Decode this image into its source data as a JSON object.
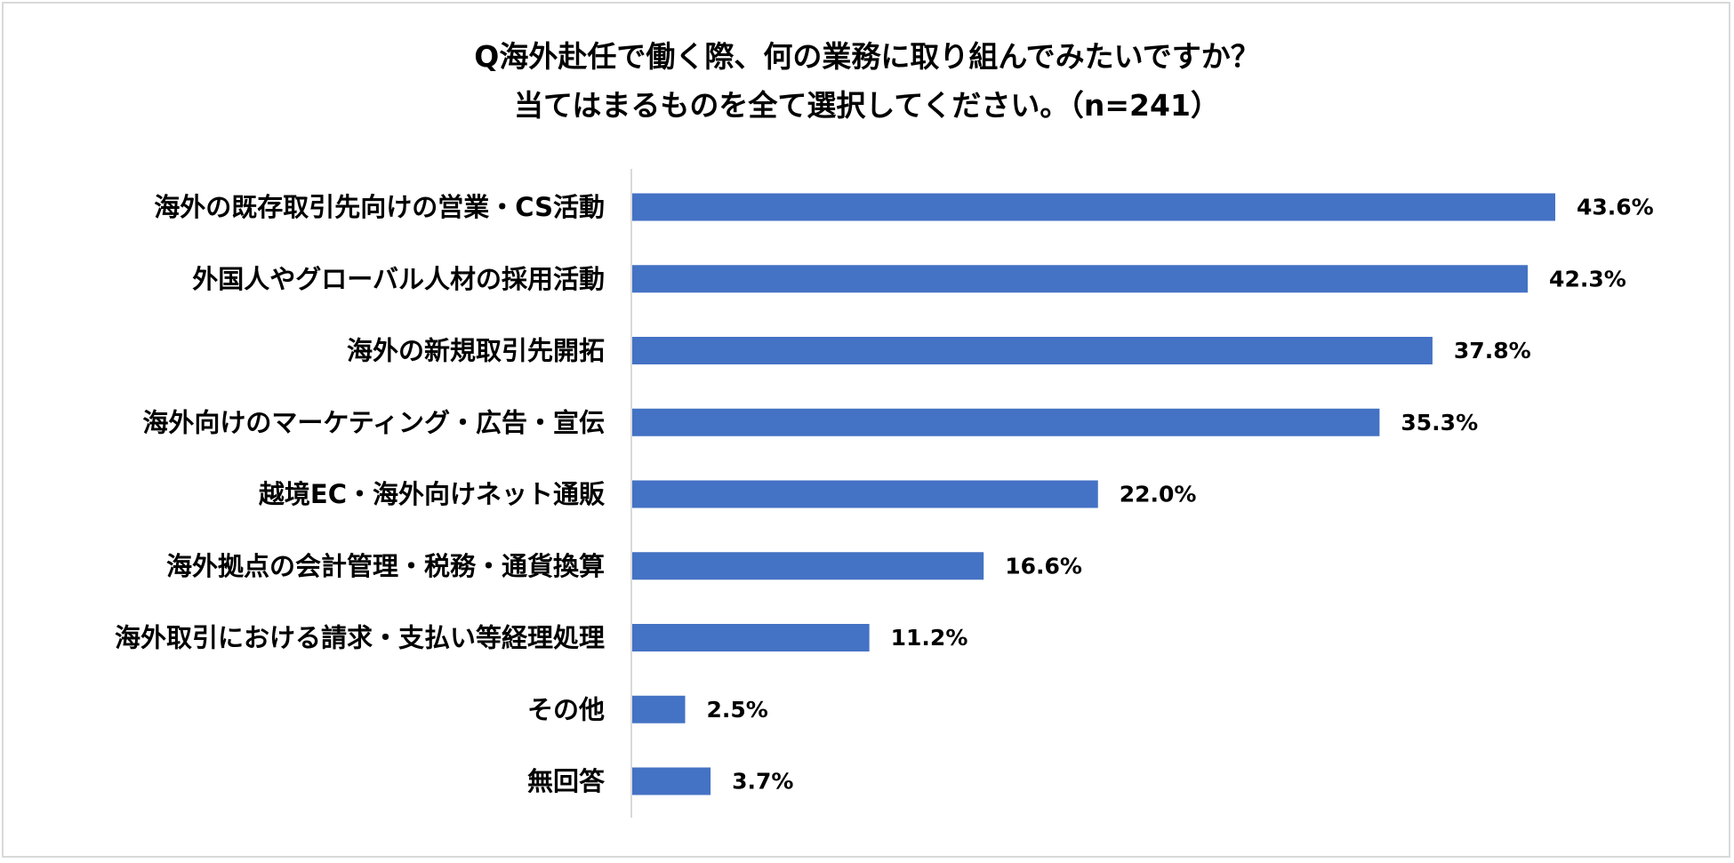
{
  "chart_data": {
    "type": "bar",
    "orientation": "horizontal",
    "title_lines": [
      "Q海外赴任で働く際、何の業務に取り組んでみたいですか？",
      "当てはまるものを全て選択してください。（n=241）"
    ],
    "categories": [
      "海外の既存取引先向けの営業・CS活動",
      "外国人やグローバル人材の採用活動",
      "海外の新規取引先開拓",
      "海外向けのマーケティング・広告・宣伝",
      "越境EC・海外向けネット通販",
      "海外拠点の会計管理・税務・通貨換算",
      "海外取引における請求・支払い等経理処理",
      "その他",
      "無回答"
    ],
    "values": [
      43.6,
      42.3,
      37.8,
      35.3,
      22.0,
      16.6,
      11.2,
      2.5,
      3.7
    ],
    "value_labels": [
      "43.6%",
      "42.3%",
      "37.8%",
      "35.3%",
      "22.0%",
      "16.6%",
      "11.2%",
      "2.5%",
      "3.7%"
    ],
    "unit": "%",
    "bar_color": "#4472c4",
    "axis_color": "#d9d9d9",
    "grid": false,
    "legend": "none"
  }
}
